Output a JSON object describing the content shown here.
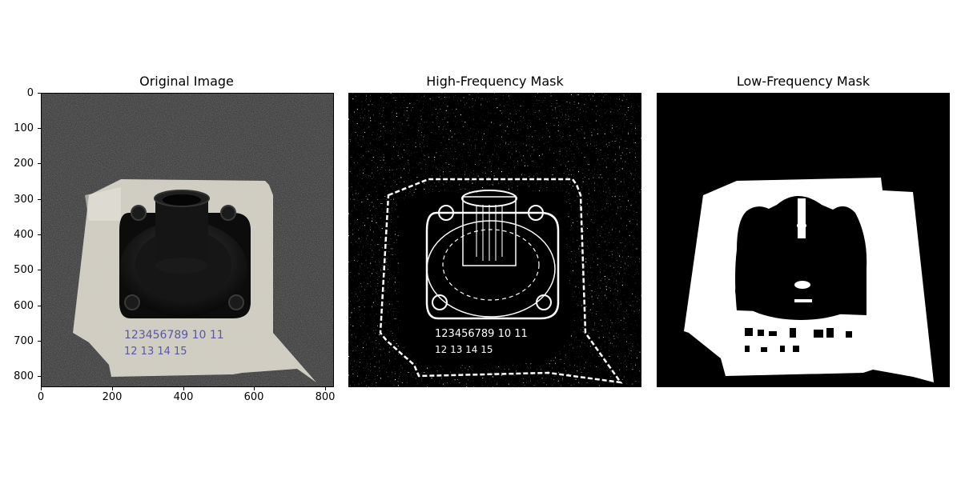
{
  "panels": [
    {
      "title": "Original Image"
    },
    {
      "title": "High-Frequency Mask"
    },
    {
      "title": "Low-Frequency Mask"
    }
  ],
  "axes": {
    "y_ticks": [
      "0",
      "100",
      "200",
      "300",
      "400",
      "500",
      "600",
      "700",
      "800"
    ],
    "x_ticks": [
      "0",
      "200",
      "400",
      "600",
      "800"
    ]
  },
  "image_text": {
    "line1": "123456789 10 11",
    "line2": "12 13 14 15"
  },
  "colors": {
    "background": "#2f2f2f",
    "tape": "#d9d6cc",
    "part": "#111111",
    "ink": "#5a57a8",
    "mask_white": "#ffffff",
    "mask_black": "#000000"
  }
}
